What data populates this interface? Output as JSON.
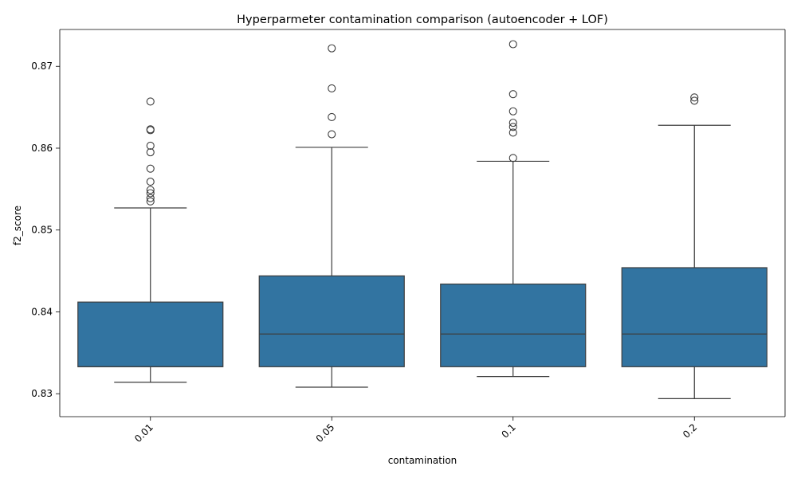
{
  "chart_data": {
    "type": "box",
    "title": "Hyperparmeter contamination comparison (autoencoder + LOF)",
    "xlabel": "contamination",
    "ylabel": "f2_score",
    "categories": [
      "0.01",
      "0.05",
      "0.1",
      "0.2"
    ],
    "ylim": [
      0.8272,
      0.8745
    ],
    "yticks": [
      "0.83",
      "0.84",
      "0.85",
      "0.86",
      "0.87"
    ],
    "ytick_values": [
      0.83,
      0.84,
      0.85,
      0.86,
      0.87
    ],
    "box_color": "#3274a1",
    "line_color": "#3d3d3d",
    "grid": false,
    "legend": "none",
    "boxes": [
      {
        "category": "0.01",
        "whisker_low": 0.8314,
        "q1": 0.8333,
        "median": 0.8333,
        "q3": 0.8412,
        "whisker_high": 0.8527,
        "outliers": [
          0.8657,
          0.8623,
          0.8622,
          0.8603,
          0.8595,
          0.8575,
          0.8559,
          0.8549,
          0.8545,
          0.8539,
          0.8535
        ]
      },
      {
        "category": "0.05",
        "whisker_low": 0.8308,
        "q1": 0.8333,
        "median": 0.8373,
        "q3": 0.8444,
        "whisker_high": 0.8601,
        "outliers": [
          0.8722,
          0.8673,
          0.8638,
          0.8617
        ]
      },
      {
        "category": "0.1",
        "whisker_low": 0.8321,
        "q1": 0.8333,
        "median": 0.8373,
        "q3": 0.8434,
        "whisker_high": 0.8584,
        "outliers": [
          0.8727,
          0.8666,
          0.8645,
          0.8631,
          0.8626,
          0.8619,
          0.8588
        ]
      },
      {
        "category": "0.2",
        "whisker_low": 0.8294,
        "q1": 0.8333,
        "median": 0.8373,
        "q3": 0.8454,
        "whisker_high": 0.8628,
        "outliers": [
          0.8662,
          0.8658
        ]
      }
    ]
  }
}
